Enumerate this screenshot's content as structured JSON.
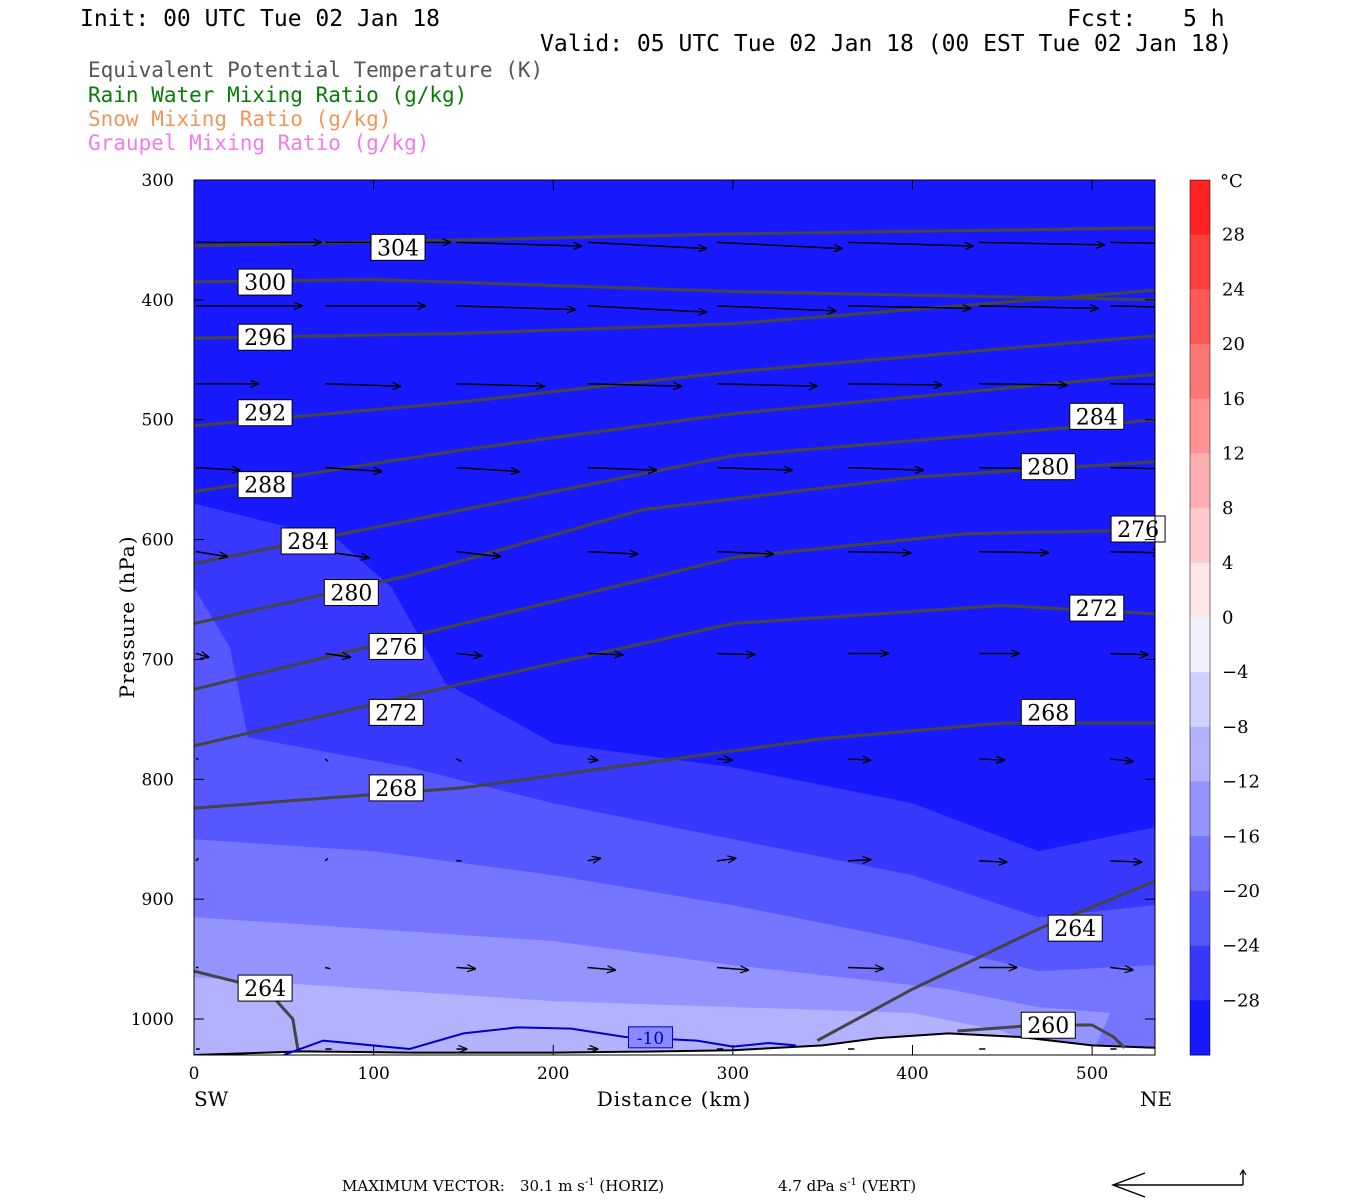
{
  "header": {
    "init": "Init: 00 UTC Tue 02 Jan 18",
    "fcst_label": "Fcst:",
    "fcst_value": "5 h",
    "valid": "Valid: 05 UTC Tue 02 Jan 18 (00 EST Tue 02 Jan 18)"
  },
  "legend": [
    {
      "text": "Equivalent Potential Temperature (K)",
      "color": "#555555"
    },
    {
      "text": "Rain Water Mixing Ratio (g/kg)",
      "color": "#0a7a0a"
    },
    {
      "text": "Snow Mixing Ratio (g/kg)",
      "color": "#f0965a"
    },
    {
      "text": "Graupel Mixing Ratio (g/kg)",
      "color": "#f07ce8"
    }
  ],
  "footer": {
    "max_vector_label": "MAXIMUM VECTOR:",
    "horiz_value": "30.1",
    "horiz_unit": "m s",
    "horiz_exp": "-1",
    "horiz_tag": "(HORIZ)",
    "vert_value": "4.7",
    "vert_unit": "dPa s",
    "vert_exp": "-1",
    "vert_tag": "(VERT)"
  },
  "chart_data": {
    "type": "heatmap",
    "xlabel": "Distance (km)",
    "ylabel": "Pressure (hPa)",
    "x_left_label": "SW",
    "x_right_label": "NE",
    "xlim": [
      0,
      535
    ],
    "ylim": [
      300,
      1030
    ],
    "y_reversed": true,
    "x_ticks": [
      0,
      100,
      200,
      300,
      400,
      500
    ],
    "y_ticks": [
      300,
      400,
      500,
      600,
      700,
      800,
      900,
      1000
    ],
    "colorbar": {
      "unit": "°C",
      "min": -32,
      "max": 32,
      "step": 4,
      "labels": [
        28,
        24,
        20,
        16,
        12,
        8,
        4,
        0,
        -4,
        -8,
        -12,
        -16,
        -20,
        -24,
        -28
      ]
    },
    "temperature_bands": [
      {
        "temp": -30,
        "points": [
          [
            0,
            1030
          ],
          [
            535,
            1030
          ],
          [
            535,
            300
          ],
          [
            0,
            300
          ]
        ]
      },
      {
        "temp": -26,
        "points": [
          [
            0,
            1030
          ],
          [
            535,
            1030
          ],
          [
            535,
            840
          ],
          [
            470,
            860
          ],
          [
            400,
            820
          ],
          [
            300,
            790
          ],
          [
            200,
            770
          ],
          [
            140,
            720
          ],
          [
            110,
            640
          ],
          [
            80,
            600
          ],
          [
            0,
            570
          ]
        ]
      },
      {
        "temp": -22,
        "points": [
          [
            0,
            1030
          ],
          [
            535,
            1030
          ],
          [
            535,
            905
          ],
          [
            470,
            915
          ],
          [
            400,
            880
          ],
          [
            300,
            850
          ],
          [
            200,
            820
          ],
          [
            120,
            790
          ],
          [
            30,
            765
          ],
          [
            20,
            690
          ],
          [
            0,
            640
          ]
        ]
      },
      {
        "temp": -18,
        "points": [
          [
            0,
            1030
          ],
          [
            535,
            1030
          ],
          [
            535,
            955
          ],
          [
            470,
            960
          ],
          [
            400,
            935
          ],
          [
            300,
            905
          ],
          [
            200,
            880
          ],
          [
            100,
            860
          ],
          [
            0,
            850
          ]
        ]
      },
      {
        "temp": -14,
        "points": [
          [
            0,
            1030
          ],
          [
            500,
            1030
          ],
          [
            510,
            995
          ],
          [
            470,
            990
          ],
          [
            420,
            975
          ],
          [
            300,
            955
          ],
          [
            200,
            935
          ],
          [
            100,
            925
          ],
          [
            0,
            915
          ]
        ]
      },
      {
        "temp": -10,
        "points": [
          [
            0,
            1030
          ],
          [
            480,
            1030
          ],
          [
            450,
            1010
          ],
          [
            400,
            995
          ],
          [
            300,
            990
          ],
          [
            200,
            985
          ],
          [
            100,
            975
          ],
          [
            0,
            965
          ]
        ]
      }
    ],
    "terrain": {
      "points": [
        [
          0,
          1030
        ],
        [
          60,
          1027
        ],
        [
          120,
          1028
        ],
        [
          200,
          1028
        ],
        [
          260,
          1027
        ],
        [
          300,
          1026
        ],
        [
          350,
          1022
        ],
        [
          380,
          1016
        ],
        [
          420,
          1012
        ],
        [
          460,
          1015
        ],
        [
          500,
          1022
        ],
        [
          535,
          1024
        ]
      ]
    },
    "theta_e_contours": [
      {
        "label": "304",
        "points": [
          [
            0,
            355
          ],
          [
            150,
            350
          ],
          [
            300,
            345
          ],
          [
            535,
            340
          ]
        ],
        "label_at": [
          98,
          357
        ]
      },
      {
        "label": "300",
        "points": [
          [
            0,
            385
          ],
          [
            100,
            383
          ],
          [
            300,
            393
          ],
          [
            535,
            400
          ]
        ],
        "label_at": [
          24,
          386
        ]
      },
      {
        "label": "296",
        "points": [
          [
            0,
            432
          ],
          [
            150,
            428
          ],
          [
            300,
            420
          ],
          [
            535,
            392
          ]
        ],
        "label_at": [
          24,
          432
        ]
      },
      {
        "label": "292",
        "points": [
          [
            0,
            505
          ],
          [
            150,
            485
          ],
          [
            300,
            460
          ],
          [
            535,
            430
          ]
        ],
        "label_at": [
          24,
          495
        ]
      },
      {
        "label": "288",
        "points": [
          [
            0,
            560
          ],
          [
            150,
            525
          ],
          [
            300,
            495
          ],
          [
            535,
            462
          ]
        ],
        "label_at": [
          24,
          555
        ]
      },
      {
        "label": "284",
        "points": [
          [
            0,
            620
          ],
          [
            150,
            575
          ],
          [
            300,
            530
          ],
          [
            500,
            505
          ],
          [
            535,
            500
          ]
        ],
        "label_at": [
          48,
          602
        ],
        "label2": "284",
        "label2_at": [
          487,
          498
        ]
      },
      {
        "label": "280",
        "points": [
          [
            0,
            670
          ],
          [
            120,
            630
          ],
          [
            250,
            575
          ],
          [
            400,
            548
          ],
          [
            535,
            535
          ]
        ],
        "label_at": [
          72,
          645
        ],
        "label2": "280",
        "label2_at": [
          460,
          540
        ]
      },
      {
        "label": "276",
        "points": [
          [
            0,
            725
          ],
          [
            150,
            670
          ],
          [
            300,
            615
          ],
          [
            430,
            595
          ],
          [
            535,
            592
          ]
        ],
        "label_at": [
          97,
          690
        ],
        "label2": "276",
        "label2_at": [
          510,
          592
        ]
      },
      {
        "label": "272",
        "points": [
          [
            0,
            772
          ],
          [
            150,
            720
          ],
          [
            300,
            670
          ],
          [
            450,
            655
          ],
          [
            535,
            662
          ]
        ],
        "label_at": [
          97,
          745
        ],
        "label2": "272",
        "label2_at": [
          487,
          658
        ]
      },
      {
        "label": "268",
        "points": [
          [
            0,
            824
          ],
          [
            150,
            807
          ],
          [
            350,
            766
          ],
          [
            450,
            753
          ],
          [
            535,
            753
          ]
        ],
        "label_at": [
          97,
          808
        ],
        "label2": "268",
        "label2_at": [
          460,
          745
        ]
      },
      {
        "label": "264",
        "points": [
          [
            0,
            960
          ],
          [
            40,
            975
          ],
          [
            55,
            1000
          ],
          [
            58,
            1027
          ]
        ],
        "label_at": [
          24,
          975
        ]
      },
      {
        "label": "264",
        "points": [
          [
            347,
            1018
          ],
          [
            400,
            975
          ],
          [
            470,
            925
          ],
          [
            535,
            885
          ]
        ],
        "label_at": [
          475,
          925
        ]
      },
      {
        "label": "260",
        "points": [
          [
            425,
            1010
          ],
          [
            470,
            1005
          ],
          [
            500,
            1005
          ],
          [
            512,
            1015
          ],
          [
            518,
            1024
          ]
        ],
        "label_at": [
          460,
          1006
        ]
      }
    ],
    "temp_contour_-10": {
      "label": "-10",
      "points": [
        [
          50,
          1030
        ],
        [
          72,
          1018
        ],
        [
          120,
          1025
        ],
        [
          150,
          1012
        ],
        [
          180,
          1007
        ],
        [
          210,
          1008
        ],
        [
          240,
          1015
        ],
        [
          280,
          1018
        ],
        [
          300,
          1023
        ],
        [
          320,
          1020
        ],
        [
          335,
          1022
        ]
      ],
      "label_at": [
        243,
        1014
      ]
    },
    "wind_vectors": {
      "x": [
        0,
        72,
        145,
        218,
        290,
        363,
        436,
        509
      ],
      "levels": [
        {
          "p": 352,
          "u": [
            1.0,
            1.0,
            1.0,
            0.95,
            1.0,
            1.0,
            1.0,
            0.98
          ],
          "w": [
            0,
            0,
            -0.03,
            -0.05,
            -0.05,
            -0.03,
            -0.02,
            -0.02
          ]
        },
        {
          "p": 405,
          "u": [
            0.85,
            0.8,
            0.95,
            0.95,
            0.95,
            0.98,
            0.95,
            0.85
          ],
          "w": [
            0,
            0,
            -0.03,
            -0.05,
            -0.04,
            -0.02,
            -0.02,
            -0.02
          ]
        },
        {
          "p": 470,
          "u": [
            0.5,
            0.6,
            0.7,
            0.75,
            0.8,
            0.75,
            0.7,
            0.7
          ],
          "w": [
            0,
            -0.02,
            -0.02,
            -0.02,
            -0.02,
            -0.01,
            -0.01,
            -0.01
          ]
        },
        {
          "p": 540,
          "u": [
            0.35,
            0.45,
            0.5,
            0.55,
            0.6,
            0.6,
            0.55,
            0.45
          ],
          "w": [
            -0.02,
            -0.03,
            -0.03,
            -0.02,
            -0.02,
            -0.02,
            -0.01,
            -0.01
          ]
        },
        {
          "p": 610,
          "u": [
            0.25,
            0.35,
            0.35,
            0.4,
            0.45,
            0.5,
            0.55,
            0.4
          ],
          "w": [
            -0.04,
            -0.05,
            -0.04,
            -0.02,
            -0.02,
            -0.01,
            -0.01,
            -0.01
          ]
        },
        {
          "p": 695,
          "u": [
            0.1,
            0.2,
            0.2,
            0.28,
            0.3,
            0.32,
            0.32,
            0.3
          ],
          "w": [
            -0.03,
            -0.03,
            -0.02,
            -0.01,
            -0.01,
            0,
            0,
            -0.01
          ]
        },
        {
          "p": 783,
          "u": [
            0.02,
            0.02,
            0.04,
            0.08,
            0.12,
            0.18,
            0.2,
            0.18
          ],
          "w": [
            0,
            -0.02,
            -0.02,
            -0.01,
            -0.01,
            -0.01,
            -0.01,
            -0.02
          ]
        },
        {
          "p": 868,
          "u": [
            0.02,
            0.02,
            0.04,
            0.1,
            0.15,
            0.18,
            0.22,
            0.25
          ],
          "w": [
            0.02,
            0.02,
            0,
            0.02,
            0.02,
            0.01,
            -0.01,
            -0.01
          ]
        },
        {
          "p": 957,
          "u": [
            0.02,
            0.04,
            0.15,
            0.22,
            0.25,
            0.28,
            0.3,
            0.18
          ],
          "w": [
            0,
            -0.01,
            -0.01,
            -0.02,
            -0.02,
            -0.01,
            0,
            -0.02
          ]
        },
        {
          "p": 1025,
          "u": [
            0.03,
            0.05,
            0.08,
            0.08,
            0.05,
            0.05,
            0.05,
            0.05
          ],
          "w": [
            0,
            0,
            0,
            0,
            0,
            0,
            0,
            0
          ]
        }
      ]
    }
  }
}
